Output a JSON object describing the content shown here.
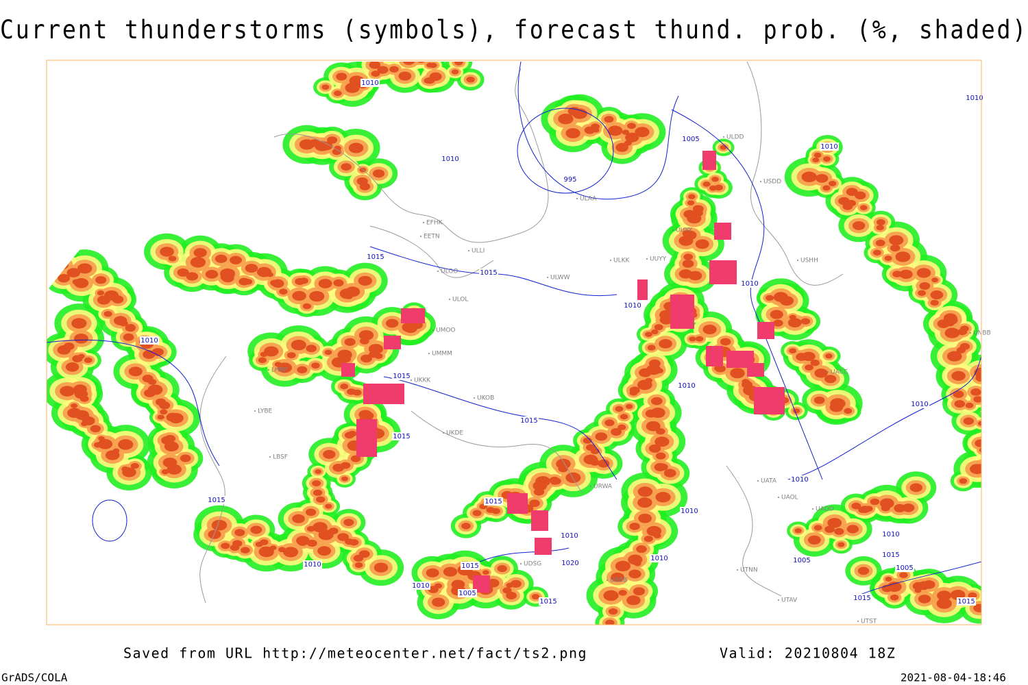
{
  "header": {
    "title": "Current thunderstorms (symbols), forecast thund. prob. (%, shaded)"
  },
  "map": {
    "isobar_labels": [
      "1010",
      "1010",
      "995",
      "1005",
      "1010",
      "1015",
      "1015",
      "1010",
      "1010",
      "1010",
      "1015",
      "1010",
      "1015",
      "1015",
      "1010",
      "1010",
      "1015",
      "1010",
      "1015",
      "1010",
      "1020",
      "1010",
      "1005",
      "1010",
      "1015",
      "1010",
      "1005",
      "1015",
      "1015",
      "1005",
      "1015",
      "1010",
      "1015",
      "1010"
    ],
    "station_codes": [
      "ULDD",
      "USDD",
      "ULAA",
      "UUYY",
      "EFHK",
      "EETN",
      "ULLI",
      "ULOO",
      "UUYY",
      "ULKK",
      "USHH",
      "ULWW",
      "ULOL",
      "UMOO",
      "UMMM",
      "UKKK",
      "UKOB",
      "UKDE",
      "LHBP",
      "LYBE",
      "LBSF",
      "URWA",
      "UATA",
      "UAOL",
      "UAOO",
      "UACC",
      "UTNN",
      "UTAV",
      "UTST",
      "UDSG",
      "UBBB",
      "UNBB"
    ]
  },
  "footer": {
    "source": "Saved from URL http://meteocenter.net/fact/ts2.png",
    "valid": "Valid: 20210804 18Z",
    "software": "GrADS/COLA",
    "timestamp": "2021-08-04-18:46"
  }
}
